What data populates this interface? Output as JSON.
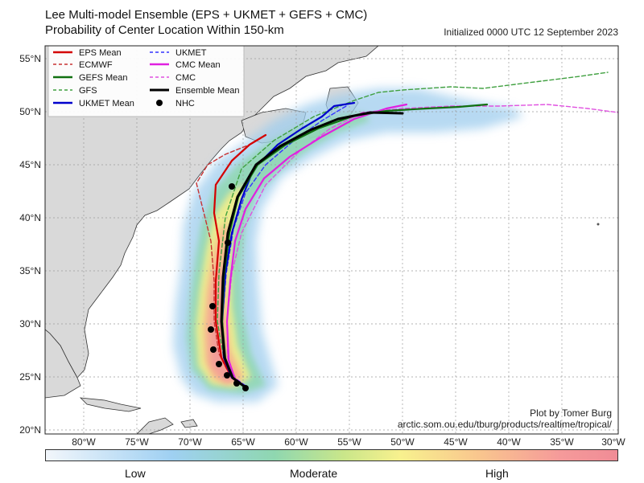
{
  "title": {
    "line1": "Lee Multi-model Ensemble (EPS + UKMET + GEFS + CMC)",
    "line2": "Probability of Center Location Within 150-km",
    "initialized": "Initialized 0000 UTC 12 September 2023"
  },
  "credit": {
    "line1": "Plot by Tomer Burg",
    "line2": "arctic.som.ou.edu/tburg/products/realtime/tropical/"
  },
  "axes": {
    "lon_labels": [
      "80°W",
      "75°W",
      "70°W",
      "65°W",
      "60°W",
      "55°W",
      "50°W",
      "45°W",
      "40°W",
      "35°W",
      "30°W"
    ],
    "lat_labels": [
      "55°N",
      "50°N",
      "45°N",
      "40°N",
      "35°N",
      "30°N",
      "25°N",
      "20°N"
    ]
  },
  "legend": [
    {
      "label": "EPS Mean",
      "color": "#d40000",
      "style": "solid"
    },
    {
      "label": "UKMET",
      "color": "#3333ff",
      "style": "dashed"
    },
    {
      "label": "ECMWF",
      "color": "#c83232",
      "style": "dashed"
    },
    {
      "label": "CMC Mean",
      "color": "#e020e0",
      "style": "solid"
    },
    {
      "label": "GEFS Mean",
      "color": "#107010",
      "style": "solid"
    },
    {
      "label": "CMC",
      "color": "#e050e0",
      "style": "dashed"
    },
    {
      "label": "GFS",
      "color": "#40a040",
      "style": "dashed"
    },
    {
      "label": "Ensemble Mean",
      "color": "#000000",
      "style": "solid"
    },
    {
      "label": "UKMET Mean",
      "color": "#0000cc",
      "style": "solid"
    },
    {
      "label": "NHC",
      "color": "#000000",
      "style": "dot"
    }
  ],
  "colorbar": {
    "low": "Low",
    "moderate": "Moderate",
    "high": "High"
  },
  "colors": {
    "ocean": "#ffffff",
    "land": "#d9d9d9",
    "grid": "#aaaaaa"
  }
}
